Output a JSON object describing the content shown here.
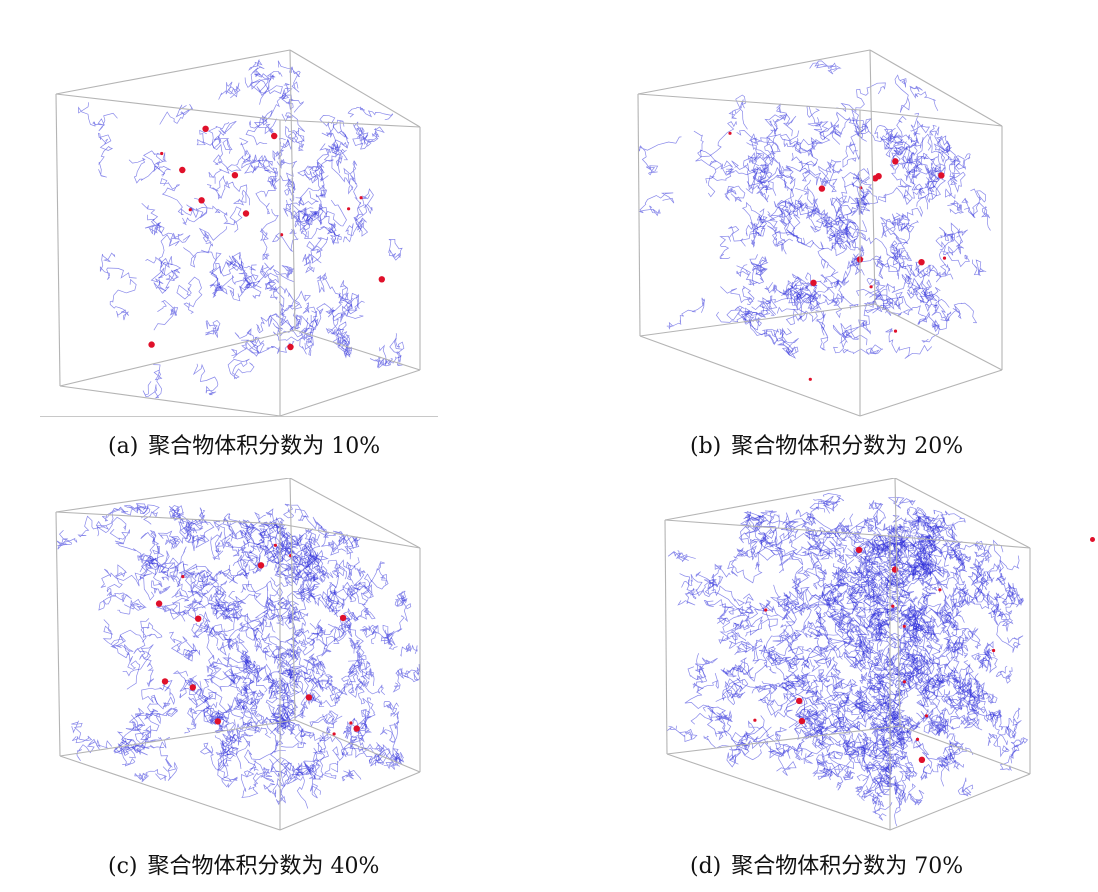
{
  "figure": {
    "colors": {
      "background": "#ffffff",
      "frame": "#b4b4b4",
      "chains": "#2626d9",
      "particles": "#e0102a"
    },
    "panels": [
      {
        "id": "a",
        "label": "(a)",
        "caption": "聚合物体积分数为 10%",
        "volume_fraction_percent": 10
      },
      {
        "id": "b",
        "label": "(b)",
        "caption": "聚合物体积分数为 20%",
        "volume_fraction_percent": 20
      },
      {
        "id": "c",
        "label": "(c)",
        "caption": "聚合物体积分数为 40%",
        "volume_fraction_percent": 40
      },
      {
        "id": "d",
        "label": "(d)",
        "caption": "聚合物体积分数为 70%",
        "volume_fraction_percent": 70
      }
    ]
  }
}
